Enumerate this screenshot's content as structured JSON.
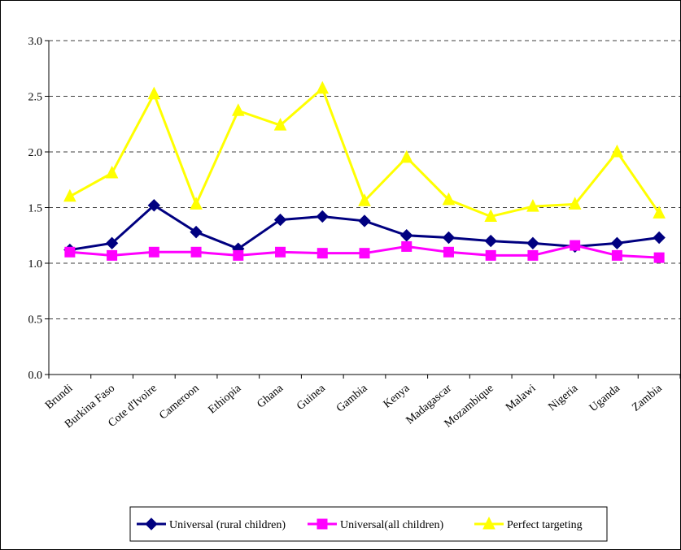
{
  "chart_data": {
    "type": "line",
    "categories": [
      "Brundi",
      "Burkina Faso",
      "Cote d'Ivoire",
      "Cameroon",
      "Ethiopia",
      "Ghana",
      "Guinea",
      "Gambia",
      "Kenya",
      "Madagascar",
      "Mozambique",
      "Malawi",
      "Nigeria",
      "Uganda",
      "Zambia"
    ],
    "series": [
      {
        "name": "Universal (rural children)",
        "color": "#000080",
        "marker": "diamond",
        "values": [
          1.12,
          1.18,
          1.52,
          1.28,
          1.13,
          1.39,
          1.42,
          1.38,
          1.25,
          1.23,
          1.2,
          1.18,
          1.15,
          1.18,
          1.23
        ]
      },
      {
        "name": "Universal(all children)",
        "color": "#ff00ff",
        "marker": "square",
        "values": [
          1.1,
          1.07,
          1.1,
          1.1,
          1.07,
          1.1,
          1.09,
          1.09,
          1.15,
          1.1,
          1.07,
          1.07,
          1.16,
          1.07,
          1.05
        ]
      },
      {
        "name": "Perfect targeting",
        "color": "#ffff00",
        "marker": "triangle",
        "values": [
          1.6,
          1.81,
          2.52,
          1.53,
          2.37,
          2.24,
          2.57,
          1.56,
          1.95,
          1.57,
          1.42,
          1.51,
          1.53,
          2.0,
          1.45
        ]
      }
    ],
    "ylim": [
      0,
      3
    ],
    "yticks": [
      {
        "value": 0,
        "label": "0.0"
      },
      {
        "value": 0.5,
        "label": "0.5"
      },
      {
        "value": 1,
        "label": "1.0"
      },
      {
        "value": 1.5,
        "label": "1.5"
      },
      {
        "value": 2,
        "label": "2.0"
      },
      {
        "value": 2.5,
        "label": "2.5"
      },
      {
        "value": 3,
        "label": "3.0"
      }
    ],
    "grid": true
  }
}
